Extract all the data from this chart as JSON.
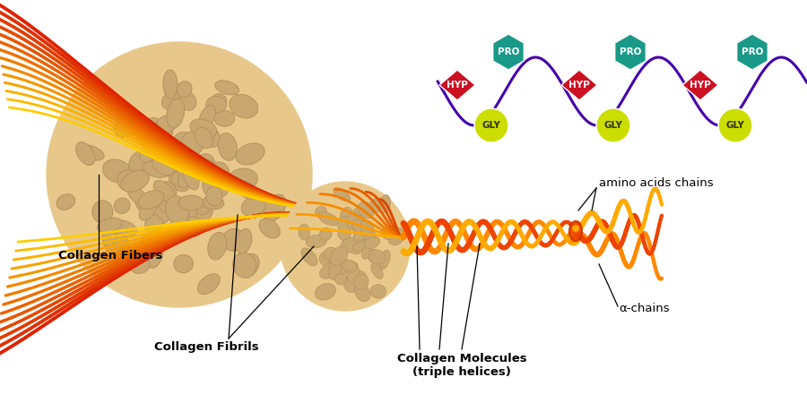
{
  "background_color": "#ffffff",
  "labels": {
    "collagen_fibers": "Collagen Fibers",
    "collagen_fibrils": "Collagen Fibrils",
    "collagen_molecules": "Collagen Molecules\n(triple helices)",
    "alpha_chains": "α-chains",
    "amino_acids_chains": "amino acids chains"
  },
  "amino_acids": {
    "HYP_color": "#cc1122",
    "PRO_color": "#1a9988",
    "GLY_color": "#ccdd00",
    "chain_color": "#4400aa",
    "text_color": "#ffffff"
  },
  "helix_color1": "#ff8800",
  "helix_color2": "#ee4400",
  "helix_color3": "#ffaa00",
  "fiber_colors": [
    "#dd2200",
    "#ee4400",
    "#ff6600",
    "#ff8800",
    "#ffaa00",
    "#ffcc00",
    "#ffdd44"
  ],
  "bubble_fill": "#e8c88a",
  "bubble_spot": "#c8a870",
  "bubble_spot2": "#b89060"
}
